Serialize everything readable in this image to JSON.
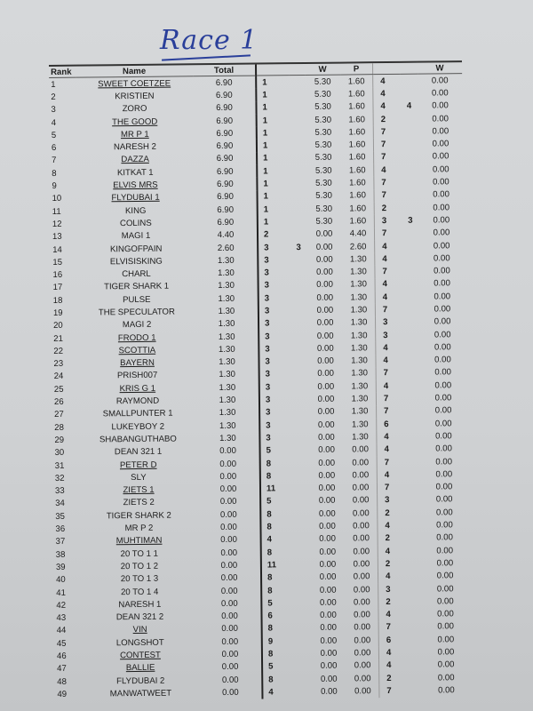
{
  "title": "Race 1",
  "headers": {
    "rank": "Rank",
    "name": "Name",
    "total": "Total",
    "w": "W",
    "p": "P",
    "w2": "W"
  },
  "rows": [
    [
      "1",
      "SWEET COETZEE",
      "6.90",
      "1",
      "",
      "5.30",
      "1.60",
      "4",
      "",
      "0.00",
      true
    ],
    [
      "2",
      "KRISTIEN",
      "6.90",
      "1",
      "",
      "5.30",
      "1.60",
      "4",
      "",
      "0.00",
      false
    ],
    [
      "3",
      "ZORO",
      "6.90",
      "1",
      "",
      "5.30",
      "1.60",
      "4",
      "4",
      "0.00",
      false
    ],
    [
      "4",
      "THE GOOD",
      "6.90",
      "1",
      "",
      "5.30",
      "1.60",
      "2",
      "",
      "0.00",
      true
    ],
    [
      "5",
      "MR P 1",
      "6.90",
      "1",
      "",
      "5.30",
      "1.60",
      "7",
      "",
      "0.00",
      true
    ],
    [
      "6",
      "NARESH 2",
      "6.90",
      "1",
      "",
      "5.30",
      "1.60",
      "7",
      "",
      "0.00",
      false
    ],
    [
      "7",
      "DAZZA",
      "6.90",
      "1",
      "",
      "5.30",
      "1.60",
      "7",
      "",
      "0.00",
      true
    ],
    [
      "8",
      "KITKAT 1",
      "6.90",
      "1",
      "",
      "5.30",
      "1.60",
      "4",
      "",
      "0.00",
      false
    ],
    [
      "9",
      "ELVIS MRS",
      "6.90",
      "1",
      "",
      "5.30",
      "1.60",
      "7",
      "",
      "0.00",
      true
    ],
    [
      "10",
      "FLYDUBAI 1",
      "6.90",
      "1",
      "",
      "5.30",
      "1.60",
      "7",
      "",
      "0.00",
      true
    ],
    [
      "11",
      "KING",
      "6.90",
      "1",
      "",
      "5.30",
      "1.60",
      "2",
      "",
      "0.00",
      false
    ],
    [
      "12",
      "COLINS",
      "6.90",
      "1",
      "",
      "5.30",
      "1.60",
      "3",
      "3",
      "0.00",
      false
    ],
    [
      "13",
      "MAGI 1",
      "4.40",
      "2",
      "",
      "0.00",
      "4.40",
      "7",
      "",
      "0.00",
      false
    ],
    [
      "14",
      "KINGOFPAIN",
      "2.60",
      "3",
      "3",
      "0.00",
      "2.60",
      "4",
      "",
      "0.00",
      false
    ],
    [
      "15",
      "ELVISISKING",
      "1.30",
      "3",
      "",
      "0.00",
      "1.30",
      "4",
      "",
      "0.00",
      false
    ],
    [
      "16",
      "CHARL",
      "1.30",
      "3",
      "",
      "0.00",
      "1.30",
      "7",
      "",
      "0.00",
      false
    ],
    [
      "17",
      "TIGER SHARK 1",
      "1.30",
      "3",
      "",
      "0.00",
      "1.30",
      "4",
      "",
      "0.00",
      false
    ],
    [
      "18",
      "PULSE",
      "1.30",
      "3",
      "",
      "0.00",
      "1.30",
      "4",
      "",
      "0.00",
      false
    ],
    [
      "19",
      "THE SPECULATOR",
      "1.30",
      "3",
      "",
      "0.00",
      "1.30",
      "7",
      "",
      "0.00",
      false
    ],
    [
      "20",
      "MAGI 2",
      "1.30",
      "3",
      "",
      "0.00",
      "1.30",
      "3",
      "",
      "0.00",
      false
    ],
    [
      "21",
      "FRODO 1",
      "1.30",
      "3",
      "",
      "0.00",
      "1.30",
      "3",
      "",
      "0.00",
      true
    ],
    [
      "22",
      "SCOTTIA",
      "1.30",
      "3",
      "",
      "0.00",
      "1.30",
      "4",
      "",
      "0.00",
      true
    ],
    [
      "23",
      "BAYERN",
      "1.30",
      "3",
      "",
      "0.00",
      "1.30",
      "4",
      "",
      "0.00",
      true
    ],
    [
      "24",
      "PRISH007",
      "1.30",
      "3",
      "",
      "0.00",
      "1.30",
      "7",
      "",
      "0.00",
      false
    ],
    [
      "25",
      "KRIS G 1",
      "1.30",
      "3",
      "",
      "0.00",
      "1.30",
      "4",
      "",
      "0.00",
      true
    ],
    [
      "26",
      "RAYMOND",
      "1.30",
      "3",
      "",
      "0.00",
      "1.30",
      "7",
      "",
      "0.00",
      false
    ],
    [
      "27",
      "SMALLPUNTER 1",
      "1.30",
      "3",
      "",
      "0.00",
      "1.30",
      "7",
      "",
      "0.00",
      false
    ],
    [
      "28",
      "LUKEYBOY 2",
      "1.30",
      "3",
      "",
      "0.00",
      "1.30",
      "6",
      "",
      "0.00",
      false
    ],
    [
      "29",
      "SHABANGUTHABO",
      "1.30",
      "3",
      "",
      "0.00",
      "1.30",
      "4",
      "",
      "0.00",
      false
    ],
    [
      "30",
      "DEAN 321 1",
      "0.00",
      "5",
      "",
      "0.00",
      "0.00",
      "4",
      "",
      "0.00",
      false
    ],
    [
      "31",
      "PETER D",
      "0.00",
      "8",
      "",
      "0.00",
      "0.00",
      "7",
      "",
      "0.00",
      true
    ],
    [
      "32",
      "SLY",
      "0.00",
      "8",
      "",
      "0.00",
      "0.00",
      "4",
      "",
      "0.00",
      false
    ],
    [
      "33",
      "ZIETS 1",
      "0.00",
      "11",
      "",
      "0.00",
      "0.00",
      "7",
      "",
      "0.00",
      true
    ],
    [
      "34",
      "ZIETS 2",
      "0.00",
      "5",
      "",
      "0.00",
      "0.00",
      "3",
      "",
      "0.00",
      false
    ],
    [
      "35",
      "TIGER SHARK 2",
      "0.00",
      "8",
      "",
      "0.00",
      "0.00",
      "2",
      "",
      "0.00",
      false
    ],
    [
      "36",
      "MR P 2",
      "0.00",
      "8",
      "",
      "0.00",
      "0.00",
      "4",
      "",
      "0.00",
      false
    ],
    [
      "37",
      "MUHTIMAN",
      "0.00",
      "4",
      "",
      "0.00",
      "0.00",
      "2",
      "",
      "0.00",
      true
    ],
    [
      "38",
      "20 TO 1 1",
      "0.00",
      "8",
      "",
      "0.00",
      "0.00",
      "4",
      "",
      "0.00",
      false
    ],
    [
      "39",
      "20 TO 1 2",
      "0.00",
      "11",
      "",
      "0.00",
      "0.00",
      "2",
      "",
      "0.00",
      false
    ],
    [
      "40",
      "20 TO 1 3",
      "0.00",
      "8",
      "",
      "0.00",
      "0.00",
      "4",
      "",
      "0.00",
      false
    ],
    [
      "41",
      "20 TO 1 4",
      "0.00",
      "8",
      "",
      "0.00",
      "0.00",
      "3",
      "",
      "0.00",
      false
    ],
    [
      "42",
      "NARESH 1",
      "0.00",
      "5",
      "",
      "0.00",
      "0.00",
      "2",
      "",
      "0.00",
      false
    ],
    [
      "43",
      "DEAN 321 2",
      "0.00",
      "6",
      "",
      "0.00",
      "0.00",
      "4",
      "",
      "0.00",
      false
    ],
    [
      "44",
      "VIN",
      "0.00",
      "8",
      "",
      "0.00",
      "0.00",
      "7",
      "",
      "0.00",
      true
    ],
    [
      "45",
      "LONGSHOT",
      "0.00",
      "9",
      "",
      "0.00",
      "0.00",
      "6",
      "",
      "0.00",
      false
    ],
    [
      "46",
      "CONTEST",
      "0.00",
      "8",
      "",
      "0.00",
      "0.00",
      "4",
      "",
      "0.00",
      true
    ],
    [
      "47",
      "BALLIE",
      "0.00",
      "5",
      "",
      "0.00",
      "0.00",
      "4",
      "",
      "0.00",
      true
    ],
    [
      "48",
      "FLYDUBAI 2",
      "0.00",
      "8",
      "",
      "0.00",
      "0.00",
      "2",
      "",
      "0.00",
      false
    ],
    [
      "49",
      "MANWATWEET",
      "0.00",
      "4",
      "",
      "0.00",
      "0.00",
      "7",
      "",
      "0.00",
      false
    ]
  ]
}
